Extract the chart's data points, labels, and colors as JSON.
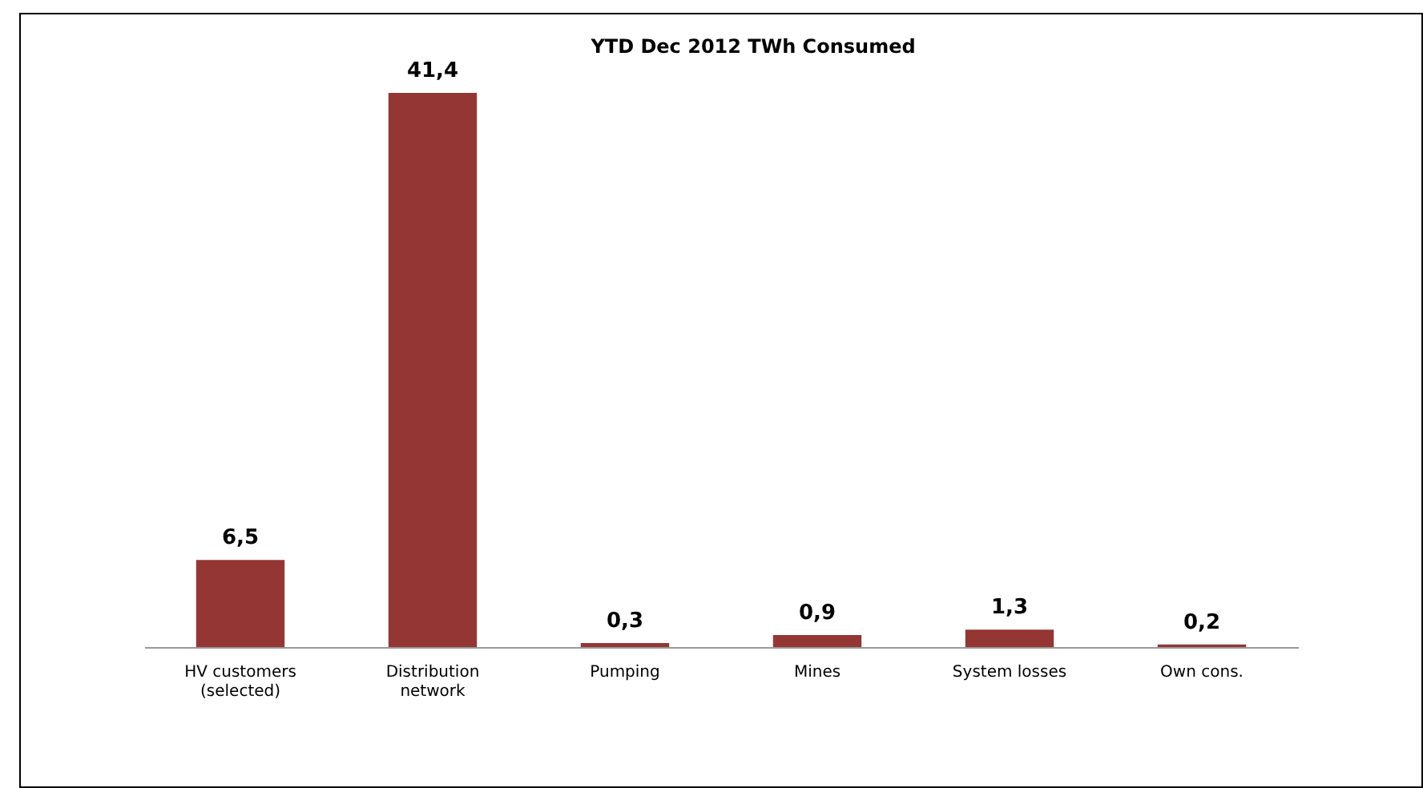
{
  "chart_data": {
    "type": "bar",
    "title": "YTD Dec 2012 TWh Consumed",
    "categories": [
      "HV  customers (selected)",
      "Distribution network",
      "Pumping",
      "Mines",
      "System losses",
      "Own cons."
    ],
    "values": [
      6.5,
      41.4,
      0.3,
      0.9,
      1.3,
      0.2
    ],
    "value_labels": [
      "6,5",
      "41,4",
      "0,3",
      "0,9",
      "1,3",
      "0,2"
    ],
    "color": "#943634"
  }
}
